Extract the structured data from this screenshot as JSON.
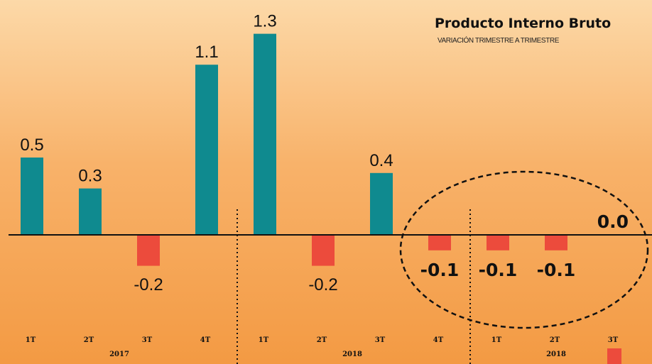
{
  "title": "Producto Interno Bruto",
  "subtitle": "VARIACIÓN TRIMESTRE A TRIMESTRE",
  "colors": {
    "positive": "#0f8a8f",
    "negative": "#ec4b3c",
    "axis": "#111111"
  },
  "chart_data": {
    "type": "bar",
    "title": "Producto Interno Bruto",
    "subtitle": "VARIACIÓN TRIMESTRE A TRIMESTRE",
    "categories": [
      "1T",
      "2T",
      "3T",
      "4T",
      "1T",
      "2T",
      "3T",
      "4T",
      "1T",
      "2T",
      "3T"
    ],
    "years": [
      {
        "label": "2017",
        "quarters": [
          0,
          1,
          2,
          3
        ]
      },
      {
        "label": "2018",
        "quarters": [
          4,
          5,
          6,
          7
        ]
      },
      {
        "label": "2018",
        "quarters": [
          8,
          9,
          10
        ]
      }
    ],
    "values": [
      0.5,
      0.3,
      -0.2,
      1.1,
      1.3,
      -0.2,
      0.4,
      -0.1,
      -0.1,
      -0.1,
      0.0
    ],
    "data_labels": [
      "0.5",
      "0.3",
      "-0.2",
      "1.1",
      "1.3",
      "-0.2",
      "0.4",
      "-0.1",
      "-0.1",
      "-0.1",
      "0.0"
    ],
    "highlighted": [
      7,
      8,
      9,
      10
    ],
    "grid": false,
    "legend": "none"
  }
}
